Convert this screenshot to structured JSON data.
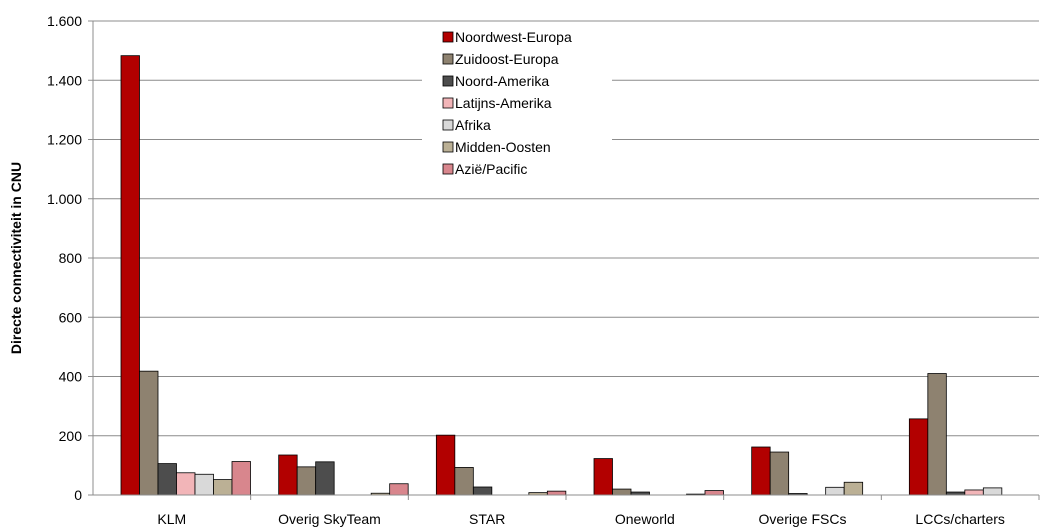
{
  "chart_data": {
    "type": "bar",
    "ylabel": "Directe connectiviteit in CNU",
    "ylim": [
      0,
      1600
    ],
    "yticks": [
      0,
      200,
      400,
      600,
      800,
      1000,
      1200,
      1400,
      1600
    ],
    "ytick_labels": [
      "0",
      "200",
      "400",
      "600",
      "800",
      "1.000",
      "1.200",
      "1.400",
      "1.600"
    ],
    "grid": true,
    "legend_position": "top-center",
    "categories": [
      "KLM",
      "Overig SkyTeam",
      "STAR",
      "Oneworld",
      "Overige FSCs",
      "LCCs/charters"
    ],
    "series": [
      {
        "name": "Noordwest-Europa",
        "color": "#B20000",
        "values": [
          1483,
          135,
          202,
          123,
          162,
          257
        ]
      },
      {
        "name": "Zuidoost-Europa",
        "color": "#8E8270",
        "values": [
          418,
          95,
          93,
          20,
          145,
          410
        ]
      },
      {
        "name": "Noord-Amerika",
        "color": "#4D4D4D",
        "values": [
          106,
          112,
          27,
          10,
          5,
          10
        ]
      },
      {
        "name": "Latijns-Amerika",
        "color": "#F2B5B8",
        "values": [
          75,
          0,
          0,
          0,
          0,
          17
        ]
      },
      {
        "name": "Afrika",
        "color": "#D9D9D9",
        "values": [
          70,
          0,
          0,
          0,
          26,
          24
        ]
      },
      {
        "name": "Midden-Oosten",
        "color": "#BBB095",
        "values": [
          52,
          6,
          8,
          3,
          43,
          0
        ]
      },
      {
        "name": "Azië/Pacific",
        "color": "#D8868D",
        "values": [
          113,
          38,
          13,
          15,
          0,
          0
        ]
      }
    ]
  }
}
